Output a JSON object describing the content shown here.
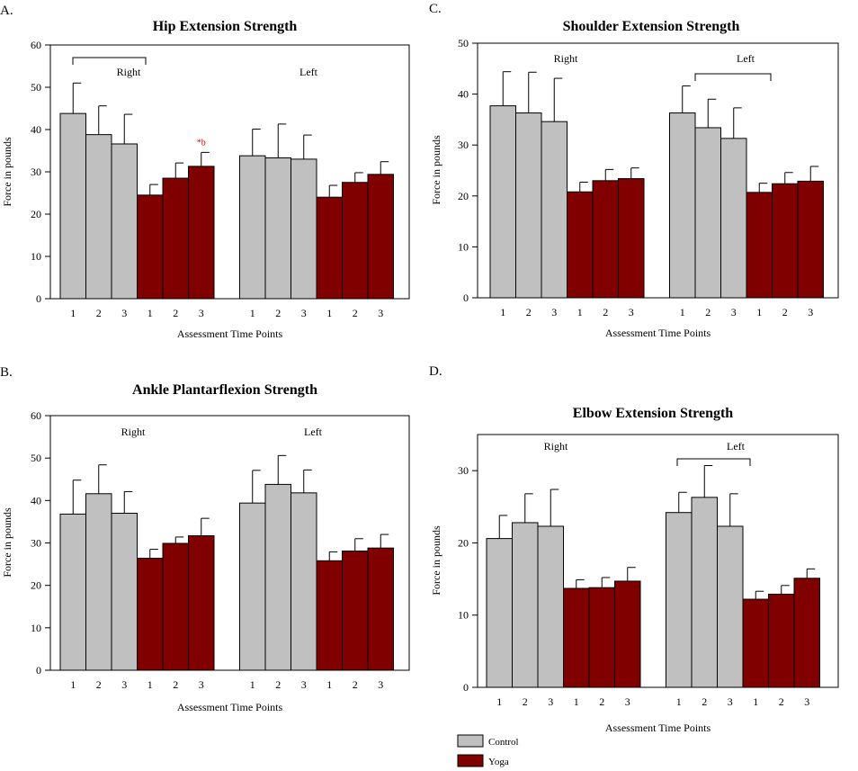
{
  "colors": {
    "control": "#c0c0c0",
    "yoga": "#800000",
    "significance": "#cc0000"
  },
  "legend": {
    "control": "Control",
    "yoga": "Yoga"
  },
  "chart_data": [
    {
      "letter": "A.",
      "type": "bar",
      "title": "Hip Extension Strength",
      "xlabel": "Assessment Time Points",
      "ylabel": "Force in pounds",
      "ylim": [
        0,
        60
      ],
      "yticks": [
        0,
        10,
        20,
        30,
        40,
        50,
        60
      ],
      "groups": [
        {
          "side": "Right",
          "bracket": true,
          "series": [
            {
              "name": "Control",
              "categories": [
                "1",
                "2",
                "3"
              ],
              "values": [
                43.8,
                38.8,
                36.6
              ],
              "errors": [
                7.2,
                6.8,
                7.0
              ]
            },
            {
              "name": "Yoga",
              "categories": [
                "1",
                "2",
                "3"
              ],
              "values": [
                24.5,
                28.5,
                31.3
              ],
              "errors": [
                2.5,
                3.6,
                3.3
              ]
            }
          ],
          "annotation": {
            "text": "*b",
            "series": 1,
            "index": 2
          }
        },
        {
          "side": "Left",
          "bracket": false,
          "series": [
            {
              "name": "Control",
              "categories": [
                "1",
                "2",
                "3"
              ],
              "values": [
                33.8,
                33.3,
                33.0
              ],
              "errors": [
                6.3,
                8.0,
                5.7
              ]
            },
            {
              "name": "Yoga",
              "categories": [
                "1",
                "2",
                "3"
              ],
              "values": [
                24.0,
                27.5,
                29.4
              ],
              "errors": [
                2.8,
                2.3,
                3.0
              ]
            }
          ]
        }
      ]
    },
    {
      "letter": "B.",
      "type": "bar",
      "title": "Ankle Plantarflexion Strength",
      "xlabel": "Assessment Time Points",
      "ylabel": "Force in pounds",
      "ylim": [
        0,
        60
      ],
      "yticks": [
        0,
        10,
        20,
        30,
        40,
        50,
        60
      ],
      "groups": [
        {
          "side": "Right",
          "bracket": false,
          "series": [
            {
              "name": "Control",
              "categories": [
                "1",
                "2",
                "3"
              ],
              "values": [
                36.8,
                41.6,
                37.0
              ],
              "errors": [
                8.0,
                6.8,
                5.1
              ]
            },
            {
              "name": "Yoga",
              "categories": [
                "1",
                "2",
                "3"
              ],
              "values": [
                26.4,
                29.9,
                31.7
              ],
              "errors": [
                2.1,
                1.5,
                4.1
              ]
            }
          ]
        },
        {
          "side": "Left",
          "bracket": false,
          "series": [
            {
              "name": "Control",
              "categories": [
                "1",
                "2",
                "3"
              ],
              "values": [
                39.4,
                43.8,
                41.8
              ],
              "errors": [
                7.7,
                6.8,
                5.4
              ]
            },
            {
              "name": "Yoga",
              "categories": [
                "1",
                "2",
                "3"
              ],
              "values": [
                25.8,
                28.1,
                28.8
              ],
              "errors": [
                2.1,
                2.9,
                3.2
              ]
            }
          ]
        }
      ]
    },
    {
      "letter": "C.",
      "type": "bar",
      "title": "Shoulder Extension Strength",
      "xlabel": "Assessment Time Points",
      "ylabel": "Force in pounds",
      "ylim": [
        0,
        50
      ],
      "yticks": [
        0,
        10,
        20,
        30,
        40,
        50
      ],
      "groups": [
        {
          "side": "Right",
          "bracket": false,
          "series": [
            {
              "name": "Control",
              "categories": [
                "1",
                "2",
                "3"
              ],
              "values": [
                37.7,
                36.3,
                34.6
              ],
              "errors": [
                6.7,
                8.0,
                8.5
              ]
            },
            {
              "name": "Yoga",
              "categories": [
                "1",
                "2",
                "3"
              ],
              "values": [
                20.8,
                23.0,
                23.4
              ],
              "errors": [
                1.9,
                2.2,
                2.1
              ]
            }
          ]
        },
        {
          "side": "Left",
          "bracket": true,
          "series": [
            {
              "name": "Control",
              "categories": [
                "1",
                "2",
                "3"
              ],
              "values": [
                36.3,
                33.4,
                31.3
              ],
              "errors": [
                5.3,
                5.6,
                6.0
              ]
            },
            {
              "name": "Yoga",
              "categories": [
                "1",
                "2",
                "3"
              ],
              "values": [
                20.7,
                22.4,
                22.9
              ],
              "errors": [
                1.8,
                2.2,
                2.9
              ]
            }
          ]
        }
      ]
    },
    {
      "letter": "D.",
      "type": "bar",
      "title": "Elbow Extension Strength",
      "xlabel": "Assessment Time Points",
      "ylabel": "Force in pounds",
      "ylim": [
        0,
        35
      ],
      "yticks": [
        0,
        10,
        20,
        30
      ],
      "groups": [
        {
          "side": "Right",
          "bracket": false,
          "series": [
            {
              "name": "Control",
              "categories": [
                "1",
                "2",
                "3"
              ],
              "values": [
                20.6,
                22.8,
                22.3
              ],
              "errors": [
                3.2,
                4.0,
                5.1
              ]
            },
            {
              "name": "Yoga",
              "categories": [
                "1",
                "2",
                "3"
              ],
              "values": [
                13.7,
                13.8,
                14.7
              ],
              "errors": [
                1.2,
                1.4,
                1.9
              ]
            }
          ]
        },
        {
          "side": "Left",
          "bracket": true,
          "series": [
            {
              "name": "Control",
              "categories": [
                "1",
                "2",
                "3"
              ],
              "values": [
                24.2,
                26.3,
                22.3
              ],
              "errors": [
                2.8,
                4.4,
                4.5
              ]
            },
            {
              "name": "Yoga",
              "categories": [
                "1",
                "2",
                "3"
              ],
              "values": [
                12.2,
                12.9,
                15.1
              ],
              "errors": [
                1.1,
                1.2,
                1.3
              ]
            }
          ]
        }
      ]
    }
  ]
}
